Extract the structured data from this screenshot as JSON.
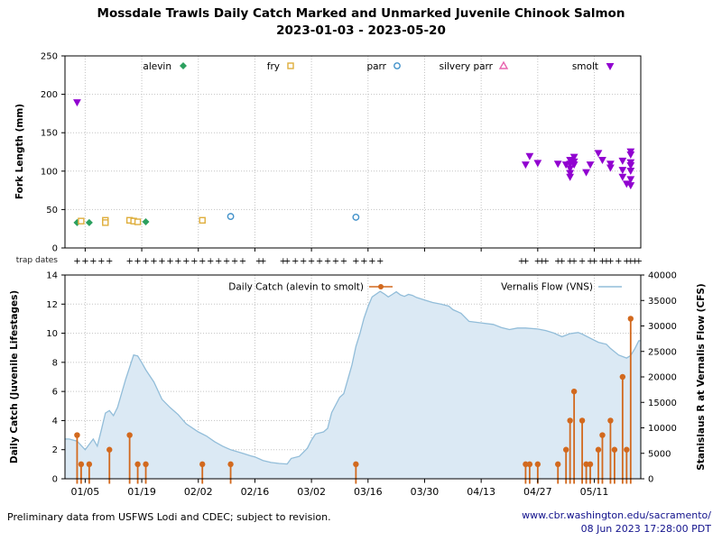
{
  "title": {
    "line1": "Mossdale Trawls Daily Catch Marked and Unmarked Juvenile Chinook Salmon",
    "line2": "2023-01-03 - 2023-05-20"
  },
  "trap_dates": {
    "label": "trap dates",
    "days": [
      3,
      5,
      7,
      9,
      11,
      16,
      18,
      20,
      22,
      24,
      26,
      28,
      30,
      32,
      34,
      36,
      38,
      40,
      42,
      44,
      48,
      49,
      54,
      55,
      57,
      59,
      61,
      63,
      65,
      67,
      69,
      72,
      74,
      76,
      78,
      113,
      114,
      117,
      118,
      119,
      122,
      123,
      125,
      126,
      128,
      130,
      131,
      133,
      134,
      135,
      137,
      139,
      140,
      141,
      142
    ]
  },
  "footer": {
    "note": "Preliminary data from USFWS Lodi and CDEC; subject to revision.",
    "url": "www.cbr.washington.edu/sacramento/",
    "timestamp": "08 Jun 2023 17:28:00 PDT"
  },
  "chart_data": [
    {
      "type": "scatter",
      "ylabel": "Fork Length (mm)",
      "ylim": [
        0,
        250
      ],
      "yticks": [
        0,
        50,
        100,
        150,
        200,
        250
      ],
      "xlim_days": [
        0,
        142.5
      ],
      "grid": true,
      "legend_position": "top-inside",
      "xticks": {
        "days": [
          5,
          19,
          33,
          47,
          61,
          75,
          89,
          103,
          117,
          131
        ],
        "labels": [
          "01/05",
          "01/19",
          "02/02",
          "02/16",
          "03/02",
          "03/16",
          "03/30",
          "04/13",
          "04/27",
          "05/11"
        ],
        "show_labels": false
      },
      "series": [
        {
          "name": "alevin",
          "marker": "diamond-filled",
          "color": "#2ca05f",
          "points": [
            [
              3,
              33
            ],
            [
              6,
              33
            ],
            [
              17,
              35
            ],
            [
              20,
              34
            ]
          ]
        },
        {
          "name": "fry",
          "marker": "square-open",
          "color": "#dfae3c",
          "points": [
            [
              4,
              35
            ],
            [
              10,
              36
            ],
            [
              10,
              33
            ],
            [
              16,
              36
            ],
            [
              17,
              35
            ],
            [
              18,
              34
            ],
            [
              34,
              36
            ]
          ]
        },
        {
          "name": "parr",
          "marker": "circle-open",
          "color": "#4191c9",
          "points": [
            [
              41,
              41
            ],
            [
              72,
              40
            ]
          ]
        },
        {
          "name": "silvery parr",
          "marker": "triangle-up-open",
          "color": "#e863ae",
          "points": []
        },
        {
          "name": "smolt",
          "marker": "triangle-down-filled",
          "color": "#9102d0",
          "points": [
            [
              3,
              190
            ],
            [
              114,
              109
            ],
            [
              115,
              120
            ],
            [
              117,
              111
            ],
            [
              122,
              110
            ],
            [
              124,
              109
            ],
            [
              125,
              115
            ],
            [
              125,
              110
            ],
            [
              125,
              104
            ],
            [
              125,
              98
            ],
            [
              125,
              93
            ],
            [
              126,
              119
            ],
            [
              126,
              113
            ],
            [
              126,
              109
            ],
            [
              129,
              99
            ],
            [
              130,
              109
            ],
            [
              132,
              124
            ],
            [
              133,
              115
            ],
            [
              135,
              110
            ],
            [
              135,
              105
            ],
            [
              138,
              114
            ],
            [
              138,
              102
            ],
            [
              138,
              93
            ],
            [
              139,
              84
            ],
            [
              140,
              126
            ],
            [
              140,
              122
            ],
            [
              140,
              112
            ],
            [
              140,
              108
            ],
            [
              140,
              101
            ],
            [
              140,
              90
            ],
            [
              140,
              82
            ]
          ]
        }
      ]
    },
    {
      "type": "stem+area",
      "ylabel_left": "Daily Catch (Juvenile Lifestages)",
      "ylabel_right": "Stanislaus R at Vernalis Flow (CFS)",
      "ylim_left": [
        0,
        14
      ],
      "yticks_left": [
        0,
        2,
        4,
        6,
        8,
        10,
        12,
        14
      ],
      "ylim_right": [
        0,
        40000
      ],
      "yticks_right": [
        0,
        5000,
        10000,
        15000,
        20000,
        25000,
        30000,
        35000,
        40000
      ],
      "xlim_days": [
        0,
        142.5
      ],
      "xticks": {
        "days": [
          5,
          19,
          33,
          47,
          61,
          75,
          89,
          103,
          117,
          131
        ],
        "labels": [
          "01/05",
          "01/19",
          "02/02",
          "02/16",
          "03/02",
          "03/16",
          "03/30",
          "04/13",
          "04/27",
          "05/11"
        ],
        "show_labels": true
      },
      "legend": [
        {
          "name": "Daily Catch (alevin to smolt)",
          "color": "#d2691e",
          "style": "stem"
        },
        {
          "name": "Vernalis Flow (VNS)",
          "color": "#92bdd9",
          "style": "line"
        }
      ],
      "flow_fill_color": "#dbe9f4",
      "daily_catch": [
        [
          3,
          3
        ],
        [
          4,
          1
        ],
        [
          6,
          1
        ],
        [
          11,
          2
        ],
        [
          16,
          3
        ],
        [
          18,
          1
        ],
        [
          20,
          1
        ],
        [
          34,
          1
        ],
        [
          41,
          1
        ],
        [
          72,
          1
        ],
        [
          114,
          1
        ],
        [
          115,
          1
        ],
        [
          117,
          1
        ],
        [
          122,
          1
        ],
        [
          124,
          2
        ],
        [
          125,
          4
        ],
        [
          126,
          6
        ],
        [
          128,
          4
        ],
        [
          129,
          1
        ],
        [
          130,
          1
        ],
        [
          132,
          2
        ],
        [
          133,
          3
        ],
        [
          135,
          4
        ],
        [
          136,
          2
        ],
        [
          138,
          7
        ],
        [
          139,
          2
        ],
        [
          140,
          11
        ]
      ],
      "vernalis_flow_cfs": [
        [
          1,
          7800
        ],
        [
          3,
          7400
        ],
        [
          5,
          5700
        ],
        [
          7,
          7800
        ],
        [
          8,
          6400
        ],
        [
          9,
          9600
        ],
        [
          10,
          12900
        ],
        [
          11,
          13400
        ],
        [
          12,
          12400
        ],
        [
          13,
          14000
        ],
        [
          15,
          19500
        ],
        [
          17,
          24300
        ],
        [
          18,
          24100
        ],
        [
          19,
          22800
        ],
        [
          20,
          21400
        ],
        [
          22,
          19000
        ],
        [
          24,
          15600
        ],
        [
          26,
          14000
        ],
        [
          28,
          12600
        ],
        [
          30,
          10800
        ],
        [
          33,
          9200
        ],
        [
          35,
          8400
        ],
        [
          37,
          7300
        ],
        [
          39,
          6400
        ],
        [
          41,
          5700
        ],
        [
          44,
          5000
        ],
        [
          46,
          4500
        ],
        [
          47,
          4300
        ],
        [
          49,
          3600
        ],
        [
          51,
          3200
        ],
        [
          53,
          3000
        ],
        [
          55,
          2900
        ],
        [
          56,
          4000
        ],
        [
          58,
          4400
        ],
        [
          60,
          6000
        ],
        [
          61,
          7600
        ],
        [
          62,
          8800
        ],
        [
          64,
          9200
        ],
        [
          65,
          9900
        ],
        [
          66,
          13000
        ],
        [
          68,
          16000
        ],
        [
          69,
          16700
        ],
        [
          71,
          22300
        ],
        [
          72,
          26000
        ],
        [
          73,
          28500
        ],
        [
          74,
          31500
        ],
        [
          75,
          33800
        ],
        [
          76,
          35700
        ],
        [
          78,
          36800
        ],
        [
          79,
          36300
        ],
        [
          80,
          35700
        ],
        [
          81,
          36200
        ],
        [
          82,
          36700
        ],
        [
          83,
          36100
        ],
        [
          84,
          35800
        ],
        [
          85,
          36200
        ],
        [
          86,
          36000
        ],
        [
          87,
          35600
        ],
        [
          89,
          35100
        ],
        [
          91,
          34600
        ],
        [
          93,
          34300
        ],
        [
          95,
          33900
        ],
        [
          96,
          33200
        ],
        [
          98,
          32500
        ],
        [
          100,
          30900
        ],
        [
          103,
          30600
        ],
        [
          106,
          30300
        ],
        [
          108,
          29700
        ],
        [
          110,
          29300
        ],
        [
          112,
          29600
        ],
        [
          114,
          29600
        ],
        [
          117,
          29400
        ],
        [
          119,
          29100
        ],
        [
          121,
          28600
        ],
        [
          123,
          27900
        ],
        [
          125,
          28500
        ],
        [
          127,
          28700
        ],
        [
          128,
          28400
        ],
        [
          130,
          27600
        ],
        [
          132,
          26800
        ],
        [
          134,
          26400
        ],
        [
          135,
          25600
        ],
        [
          137,
          24300
        ],
        [
          139,
          23700
        ],
        [
          140,
          24200
        ],
        [
          141,
          25500
        ],
        [
          142,
          27100
        ]
      ]
    }
  ]
}
